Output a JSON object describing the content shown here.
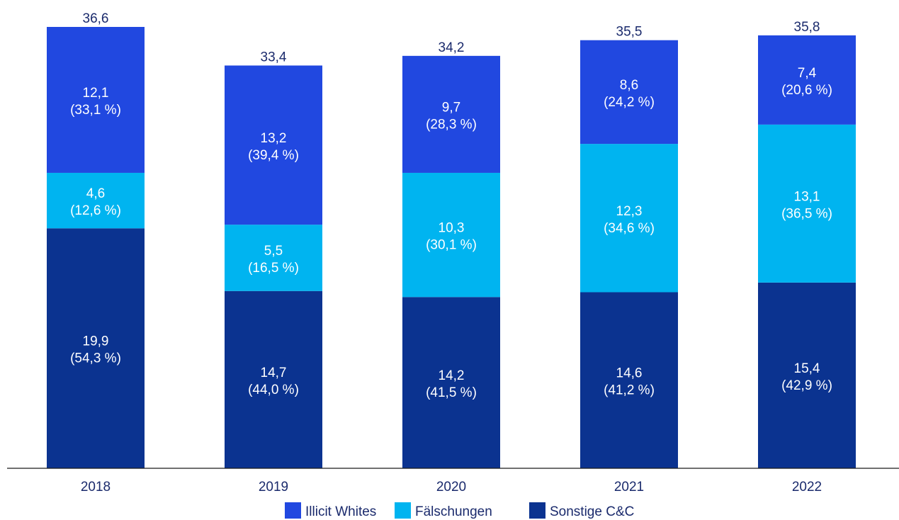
{
  "chart_data": {
    "type": "bar",
    "stacked": true,
    "categories": [
      "2018",
      "2019",
      "2020",
      "2021",
      "2022"
    ],
    "series": [
      {
        "name": "Sonstige C&C",
        "color": "#0b3390",
        "values": [
          19.9,
          14.7,
          14.2,
          14.6,
          15.4
        ],
        "labels": [
          "19,9",
          "14,7",
          "14,2",
          "14,6",
          "15,4"
        ],
        "shares": [
          "(54,3 %)",
          "(44,0 %)",
          "(41,5 %)",
          "(41,2 %)",
          "(42,9 %)"
        ]
      },
      {
        "name": "Fälschungen",
        "color": "#00b4f0",
        "values": [
          4.6,
          5.5,
          10.3,
          12.3,
          13.1
        ],
        "labels": [
          "4,6",
          "5,5",
          "10,3",
          "12,3",
          "13,1"
        ],
        "shares": [
          "(12,6 %)",
          "(16,5 %)",
          "(30,1 %)",
          "(34,6 %)",
          "(36,5 %)"
        ]
      },
      {
        "name": "Illicit Whites",
        "color": "#2148e0",
        "values": [
          12.1,
          13.2,
          9.7,
          8.6,
          7.4
        ],
        "labels": [
          "12,1",
          "13,2",
          "9,7",
          "8,6",
          "7,4"
        ],
        "shares": [
          "(33,1 %)",
          "(39,4 %)",
          "(28,3 %)",
          "(24,2 %)",
          "(20,6 %)"
        ]
      }
    ],
    "totals": [
      36.6,
      33.4,
      34.2,
      35.5,
      35.8
    ],
    "total_labels": [
      "36,6",
      "33,4",
      "34,2",
      "35,5",
      "35,8"
    ],
    "legend": {
      "position": "bottom",
      "order": [
        "Illicit Whites",
        "Fälschungen",
        "Sonstige C&C"
      ]
    },
    "ylim": [
      0,
      36.6
    ],
    "grid": false,
    "y_axis_visible": false
  }
}
